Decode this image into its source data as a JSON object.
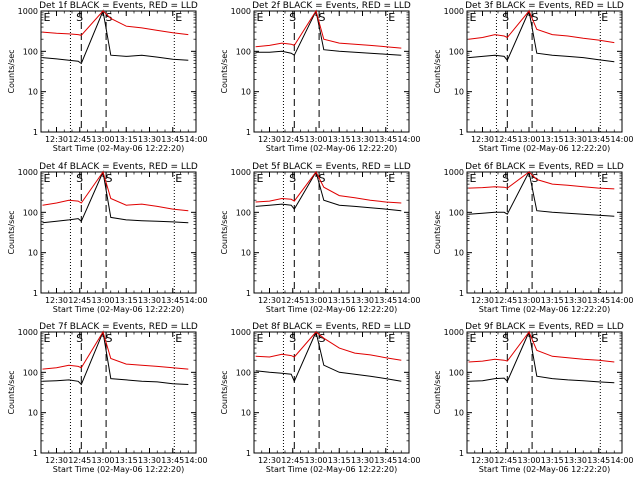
{
  "figure": {
    "series_colors": {
      "events": "#000000",
      "lld": "#e00000"
    },
    "line_styles": {
      "start_end_markers": "dotted",
      "s_markers": "dashed"
    }
  },
  "chart_data": [
    {
      "type": "line",
      "title": "Det 1f BLACK = Events, RED = LLD",
      "xlabel": "Start Time (02-May-06 12:22:20)",
      "ylabel": "Counts/sec",
      "yscale": "log",
      "ylim": [
        1,
        1000
      ],
      "yticks": [
        "1",
        "10",
        "100",
        "1000"
      ],
      "xlim": [
        "12:20",
        "14:00"
      ],
      "xticks": [
        "12:30",
        "12:45",
        "13:00",
        "13:15",
        "13:30",
        "13:45",
        "14:00"
      ],
      "markers": {
        "E_start": "12:21",
        "S_start": "12:42",
        "S_end": "13:01",
        "E_end": "13:46",
        "dotted": [
          "12:39",
          "13:46"
        ],
        "dashed": [
          "12:46",
          "13:02"
        ]
      },
      "series": [
        {
          "name": "Events",
          "color": "#000000",
          "x": [
            "12:21",
            "12:30",
            "12:38",
            "12:44",
            "12:46",
            "13:00",
            "13:05",
            "13:15",
            "13:25",
            "13:35",
            "13:45",
            "13:55"
          ],
          "values": [
            70,
            65,
            60,
            57,
            50,
            1000,
            80,
            75,
            80,
            72,
            64,
            60
          ]
        },
        {
          "name": "LLD",
          "color": "#e00000",
          "x": [
            "12:21",
            "12:30",
            "12:38",
            "12:44",
            "12:46",
            "13:00",
            "13:05",
            "13:15",
            "13:25",
            "13:35",
            "13:45",
            "13:55"
          ],
          "values": [
            300,
            280,
            270,
            260,
            250,
            1000,
            650,
            420,
            380,
            330,
            290,
            260
          ]
        }
      ]
    },
    {
      "type": "line",
      "title": "Det 2f BLACK = Events, RED = LLD",
      "xlabel": "Start Time (02-May-06 12:22:20)",
      "ylabel": "Counts/sec",
      "yscale": "log",
      "ylim": [
        1,
        1000
      ],
      "yticks": [
        "1",
        "10",
        "100",
        "1000"
      ],
      "xlim": [
        "12:20",
        "14:00"
      ],
      "xticks": [
        "12:30",
        "12:45",
        "13:00",
        "13:15",
        "13:30",
        "13:45",
        "14:00"
      ],
      "markers": {
        "E_start": "12:21",
        "S_start": "12:42",
        "S_end": "13:01",
        "E_end": "13:46",
        "dotted": [
          "12:39",
          "13:46"
        ],
        "dashed": [
          "12:46",
          "13:02"
        ]
      },
      "series": [
        {
          "name": "Events",
          "color": "#000000",
          "x": [
            "12:21",
            "12:30",
            "12:38",
            "12:44",
            "12:46",
            "13:00",
            "13:05",
            "13:15",
            "13:25",
            "13:35",
            "13:45",
            "13:55"
          ],
          "values": [
            95,
            95,
            100,
            90,
            80,
            1000,
            110,
            100,
            95,
            90,
            85,
            80
          ]
        },
        {
          "name": "LLD",
          "color": "#e00000",
          "x": [
            "12:21",
            "12:30",
            "12:38",
            "12:44",
            "12:46",
            "13:00",
            "13:05",
            "13:15",
            "13:25",
            "13:35",
            "13:45",
            "13:55"
          ],
          "values": [
            130,
            140,
            160,
            150,
            140,
            1000,
            200,
            160,
            150,
            140,
            130,
            120
          ]
        }
      ]
    },
    {
      "type": "line",
      "title": "Det 3f BLACK = Events, RED = LLD",
      "xlabel": "Start Time (02-May-06 12:22:20)",
      "ylabel": "Counts/sec",
      "yscale": "log",
      "ylim": [
        1,
        1000
      ],
      "yticks": [
        "1",
        "10",
        "100",
        "1000"
      ],
      "xlim": [
        "12:20",
        "14:00"
      ],
      "xticks": [
        "12:30",
        "12:45",
        "13:00",
        "13:15",
        "13:30",
        "13:45",
        "14:00"
      ],
      "markers": {
        "E_start": "12:21",
        "S_start": "12:42",
        "S_end": "13:01",
        "E_end": "13:46",
        "dotted": [
          "12:39",
          "13:46"
        ],
        "dashed": [
          "12:46",
          "13:02"
        ]
      },
      "series": [
        {
          "name": "Events",
          "color": "#000000",
          "x": [
            "12:21",
            "12:30",
            "12:38",
            "12:44",
            "12:46",
            "13:00",
            "13:05",
            "13:15",
            "13:25",
            "13:35",
            "13:45",
            "13:55"
          ],
          "values": [
            70,
            75,
            80,
            75,
            60,
            1000,
            90,
            80,
            75,
            70,
            62,
            55
          ]
        },
        {
          "name": "LLD",
          "color": "#e00000",
          "x": [
            "12:21",
            "12:30",
            "12:38",
            "12:44",
            "12:46",
            "13:00",
            "13:05",
            "13:15",
            "13:25",
            "13:35",
            "13:45",
            "13:55"
          ],
          "values": [
            200,
            220,
            260,
            240,
            220,
            1000,
            350,
            260,
            240,
            210,
            190,
            165
          ]
        }
      ]
    },
    {
      "type": "line",
      "title": "Det 4f BLACK = Events, RED = LLD",
      "xlabel": "Start Time (02-May-06 12:22:20)",
      "ylabel": "Counts/sec",
      "yscale": "log",
      "ylim": [
        1,
        1000
      ],
      "yticks": [
        "1",
        "10",
        "100",
        "1000"
      ],
      "xlim": [
        "12:20",
        "14:00"
      ],
      "xticks": [
        "12:30",
        "12:45",
        "13:00",
        "13:15",
        "13:30",
        "13:45",
        "14:00"
      ],
      "markers": {
        "E_start": "12:21",
        "S_start": "12:42",
        "S_end": "13:01",
        "E_end": "13:46",
        "dotted": [
          "12:39",
          "13:46"
        ],
        "dashed": [
          "12:46",
          "13:02"
        ]
      },
      "series": [
        {
          "name": "Events",
          "color": "#000000",
          "x": [
            "12:21",
            "12:30",
            "12:38",
            "12:44",
            "12:46",
            "13:00",
            "13:05",
            "13:15",
            "13:25",
            "13:35",
            "13:45",
            "13:55"
          ],
          "values": [
            55,
            60,
            65,
            70,
            60,
            1000,
            75,
            65,
            62,
            60,
            58,
            55
          ]
        },
        {
          "name": "LLD",
          "color": "#e00000",
          "x": [
            "12:21",
            "12:30",
            "12:38",
            "12:44",
            "12:46",
            "13:00",
            "13:05",
            "13:15",
            "13:25",
            "13:35",
            "13:45",
            "13:55"
          ],
          "values": [
            150,
            170,
            200,
            190,
            170,
            1000,
            220,
            150,
            160,
            140,
            120,
            110
          ]
        }
      ]
    },
    {
      "type": "line",
      "title": "Det 5f BLACK = Events, RED = LLD",
      "xlabel": "Start Time (02-May-06 12:22:20)",
      "ylabel": "Counts/sec",
      "yscale": "log",
      "ylim": [
        1,
        1000
      ],
      "yticks": [
        "1",
        "10",
        "100",
        "1000"
      ],
      "xlim": [
        "12:20",
        "14:00"
      ],
      "xticks": [
        "12:30",
        "12:45",
        "13:00",
        "13:15",
        "13:30",
        "13:45",
        "14:00"
      ],
      "markers": {
        "E_start": "12:21",
        "S_start": "12:42",
        "S_end": "13:01",
        "E_end": "13:46",
        "dotted": [
          "12:39",
          "13:46"
        ],
        "dashed": [
          "12:46",
          "13:02"
        ]
      },
      "series": [
        {
          "name": "Events",
          "color": "#000000",
          "x": [
            "12:21",
            "12:30",
            "12:38",
            "12:44",
            "12:46",
            "13:00",
            "13:05",
            "13:15",
            "13:25",
            "13:35",
            "13:45",
            "13:55"
          ],
          "values": [
            140,
            150,
            160,
            150,
            120,
            1000,
            200,
            150,
            140,
            130,
            120,
            110
          ]
        },
        {
          "name": "LLD",
          "color": "#e00000",
          "x": [
            "12:21",
            "12:30",
            "12:38",
            "12:44",
            "12:46",
            "13:00",
            "13:05",
            "13:15",
            "13:25",
            "13:35",
            "13:45",
            "13:55"
          ],
          "values": [
            180,
            190,
            220,
            210,
            190,
            1000,
            420,
            260,
            230,
            200,
            180,
            170
          ]
        }
      ]
    },
    {
      "type": "line",
      "title": "Det 6f BLACK = Events, RED = LLD",
      "xlabel": "Start Time (02-May-06 12:22:20)",
      "ylabel": "Counts/sec",
      "yscale": "log",
      "ylim": [
        1,
        1000
      ],
      "yticks": [
        "1",
        "10",
        "100",
        "1000"
      ],
      "xlim": [
        "12:20",
        "14:00"
      ],
      "xticks": [
        "12:30",
        "12:45",
        "13:00",
        "13:15",
        "13:30",
        "13:45",
        "14:00"
      ],
      "markers": {
        "E_start": "12:21",
        "S_start": "12:42",
        "S_end": "13:01",
        "E_end": "13:46",
        "dotted": [
          "12:39",
          "13:46"
        ],
        "dashed": [
          "12:46",
          "13:02"
        ]
      },
      "series": [
        {
          "name": "Events",
          "color": "#000000",
          "x": [
            "12:21",
            "12:30",
            "12:38",
            "12:44",
            "12:46",
            "13:00",
            "13:05",
            "13:15",
            "13:25",
            "13:35",
            "13:45",
            "13:55"
          ],
          "values": [
            90,
            95,
            100,
            100,
            90,
            1000,
            110,
            100,
            95,
            90,
            85,
            80
          ]
        },
        {
          "name": "LLD",
          "color": "#e00000",
          "x": [
            "12:21",
            "12:30",
            "12:38",
            "12:44",
            "12:46",
            "13:00",
            "13:05",
            "13:15",
            "13:25",
            "13:35",
            "13:45",
            "13:55"
          ],
          "values": [
            400,
            410,
            430,
            420,
            400,
            1000,
            650,
            500,
            470,
            430,
            400,
            380
          ]
        }
      ]
    },
    {
      "type": "line",
      "title": "Det 7f BLACK = Events, RED = LLD",
      "xlabel": "Start Time (02-May-06 12:22:20)",
      "ylabel": "Counts/sec",
      "yscale": "log",
      "ylim": [
        1,
        1000
      ],
      "yticks": [
        "1",
        "10",
        "100",
        "1000"
      ],
      "xlim": [
        "12:20",
        "14:00"
      ],
      "xticks": [
        "12:30",
        "12:45",
        "13:00",
        "13:15",
        "13:30",
        "13:45",
        "14:00"
      ],
      "markers": {
        "E_start": "12:21",
        "S_start": "12:42",
        "S_end": "13:01",
        "E_end": "13:46",
        "dotted": [
          "12:39",
          "13:46"
        ],
        "dashed": [
          "12:46",
          "13:02"
        ]
      },
      "series": [
        {
          "name": "Events",
          "color": "#000000",
          "x": [
            "12:21",
            "12:30",
            "12:38",
            "12:44",
            "12:46",
            "13:00",
            "13:05",
            "13:15",
            "13:25",
            "13:35",
            "13:45",
            "13:55"
          ],
          "values": [
            60,
            62,
            65,
            60,
            50,
            1000,
            70,
            65,
            60,
            58,
            52,
            50
          ]
        },
        {
          "name": "LLD",
          "color": "#e00000",
          "x": [
            "12:21",
            "12:30",
            "12:38",
            "12:44",
            "12:46",
            "13:00",
            "13:05",
            "13:15",
            "13:25",
            "13:35",
            "13:45",
            "13:55"
          ],
          "values": [
            120,
            130,
            150,
            140,
            130,
            1000,
            220,
            160,
            150,
            140,
            130,
            120
          ]
        }
      ]
    },
    {
      "type": "line",
      "title": "Det 8f BLACK = Events, RED = LLD",
      "xlabel": "Start Time (02-May-06 12:22:20)",
      "ylabel": "Counts/sec",
      "yscale": "log",
      "ylim": [
        1,
        1000
      ],
      "yticks": [
        "1",
        "10",
        "100",
        "1000"
      ],
      "xlim": [
        "12:20",
        "14:00"
      ],
      "xticks": [
        "12:30",
        "12:45",
        "13:00",
        "13:15",
        "13:30",
        "13:45",
        "14:00"
      ],
      "markers": {
        "E_start": "12:21",
        "S_start": "12:42",
        "S_end": "13:01",
        "E_end": "13:46",
        "dotted": [
          "12:39",
          "13:46"
        ],
        "dashed": [
          "12:46",
          "13:02"
        ]
      },
      "series": [
        {
          "name": "Events",
          "color": "#000000",
          "x": [
            "12:21",
            "12:30",
            "12:38",
            "12:44",
            "12:46",
            "13:00",
            "13:05",
            "13:15",
            "13:25",
            "13:35",
            "13:45",
            "13:55"
          ],
          "values": [
            110,
            100,
            95,
            90,
            60,
            1000,
            150,
            100,
            90,
            80,
            70,
            60
          ]
        },
        {
          "name": "LLD",
          "color": "#e00000",
          "x": [
            "12:21",
            "12:30",
            "12:38",
            "12:44",
            "12:46",
            "13:00",
            "13:05",
            "13:15",
            "13:25",
            "13:35",
            "13:45",
            "13:55"
          ],
          "values": [
            250,
            240,
            280,
            260,
            240,
            1000,
            700,
            400,
            300,
            270,
            230,
            200
          ]
        }
      ]
    },
    {
      "type": "line",
      "title": "Det 9f BLACK = Events, RED = LLD",
      "xlabel": "Start Time (02-May-06 12:22:20)",
      "ylabel": "Counts/sec",
      "yscale": "log",
      "ylim": [
        1,
        1000
      ],
      "yticks": [
        "1",
        "10",
        "100",
        "1000"
      ],
      "xlim": [
        "12:20",
        "14:00"
      ],
      "xticks": [
        "12:30",
        "12:45",
        "13:00",
        "13:15",
        "13:30",
        "13:45",
        "14:00"
      ],
      "markers": {
        "E_start": "12:21",
        "S_start": "12:42",
        "S_end": "13:01",
        "E_end": "13:46",
        "dotted": [
          "12:39",
          "13:46"
        ],
        "dashed": [
          "12:46",
          "13:02"
        ]
      },
      "series": [
        {
          "name": "Events",
          "color": "#000000",
          "x": [
            "12:21",
            "12:30",
            "12:38",
            "12:44",
            "12:46",
            "13:00",
            "13:05",
            "13:15",
            "13:25",
            "13:35",
            "13:45",
            "13:55"
          ],
          "values": [
            60,
            62,
            70,
            72,
            60,
            1000,
            80,
            70,
            65,
            62,
            58,
            55
          ]
        },
        {
          "name": "LLD",
          "color": "#e00000",
          "x": [
            "12:21",
            "12:30",
            "12:38",
            "12:44",
            "12:46",
            "13:00",
            "13:05",
            "13:15",
            "13:25",
            "13:35",
            "13:45",
            "13:55"
          ],
          "values": [
            180,
            190,
            210,
            200,
            190,
            1000,
            350,
            250,
            230,
            210,
            200,
            180
          ]
        }
      ]
    }
  ]
}
